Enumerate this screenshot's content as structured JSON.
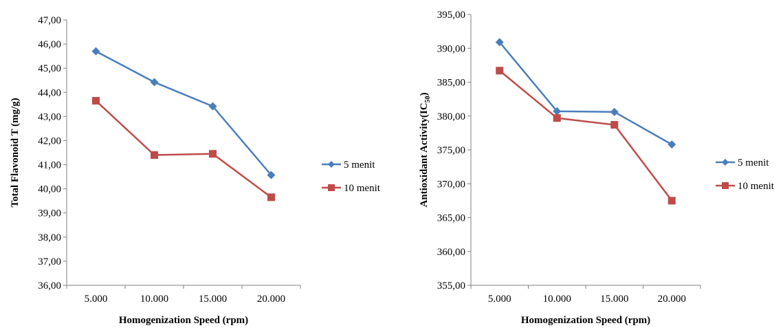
{
  "chart_data": [
    {
      "type": "line",
      "xlabel": "Homogenization Speed (rpm)",
      "ylabel": "Total Flavonoid T (mg/g)",
      "categories": [
        "5.000",
        "10.000",
        "15.000",
        "20.000"
      ],
      "ylim": [
        36,
        47
      ],
      "ystep": 1,
      "ytick_labels": [
        "36,00",
        "37,00",
        "38,00",
        "39,00",
        "40,00",
        "41,00",
        "42,00",
        "43,00",
        "44,00",
        "45,00",
        "46,00",
        "47,00"
      ],
      "grid": false,
      "legend_position": "right",
      "series": [
        {
          "name": "5 menit",
          "color": "#4a7ebb",
          "marker": "diamond",
          "values": [
            45.7,
            44.42,
            43.42,
            40.57
          ]
        },
        {
          "name": "10 menit",
          "color": "#be4b48",
          "marker": "square",
          "values": [
            43.65,
            41.4,
            41.45,
            39.65
          ]
        }
      ]
    },
    {
      "type": "line",
      "xlabel": "Homogenization Speed (rpm)",
      "ylabel_main": "Antioxidant  Activity(IC",
      "ylabel_sub": "50",
      "ylabel_end": ")",
      "categories": [
        "5.000",
        "10.000",
        "15.000",
        "20.000"
      ],
      "ylim": [
        355,
        395
      ],
      "ystep": 5,
      "ytick_labels": [
        "355,00",
        "360,00",
        "365,00",
        "370,00",
        "375,00",
        "380,00",
        "385,00",
        "390,00",
        "395,00"
      ],
      "grid": false,
      "legend_position": "right",
      "series": [
        {
          "name": "5 menit",
          "color": "#4a7ebb",
          "marker": "diamond",
          "values": [
            390.9,
            380.7,
            380.6,
            375.8
          ]
        },
        {
          "name": "10 menit",
          "color": "#be4b48",
          "marker": "square",
          "values": [
            386.7,
            379.7,
            378.7,
            367.5
          ]
        }
      ]
    }
  ]
}
